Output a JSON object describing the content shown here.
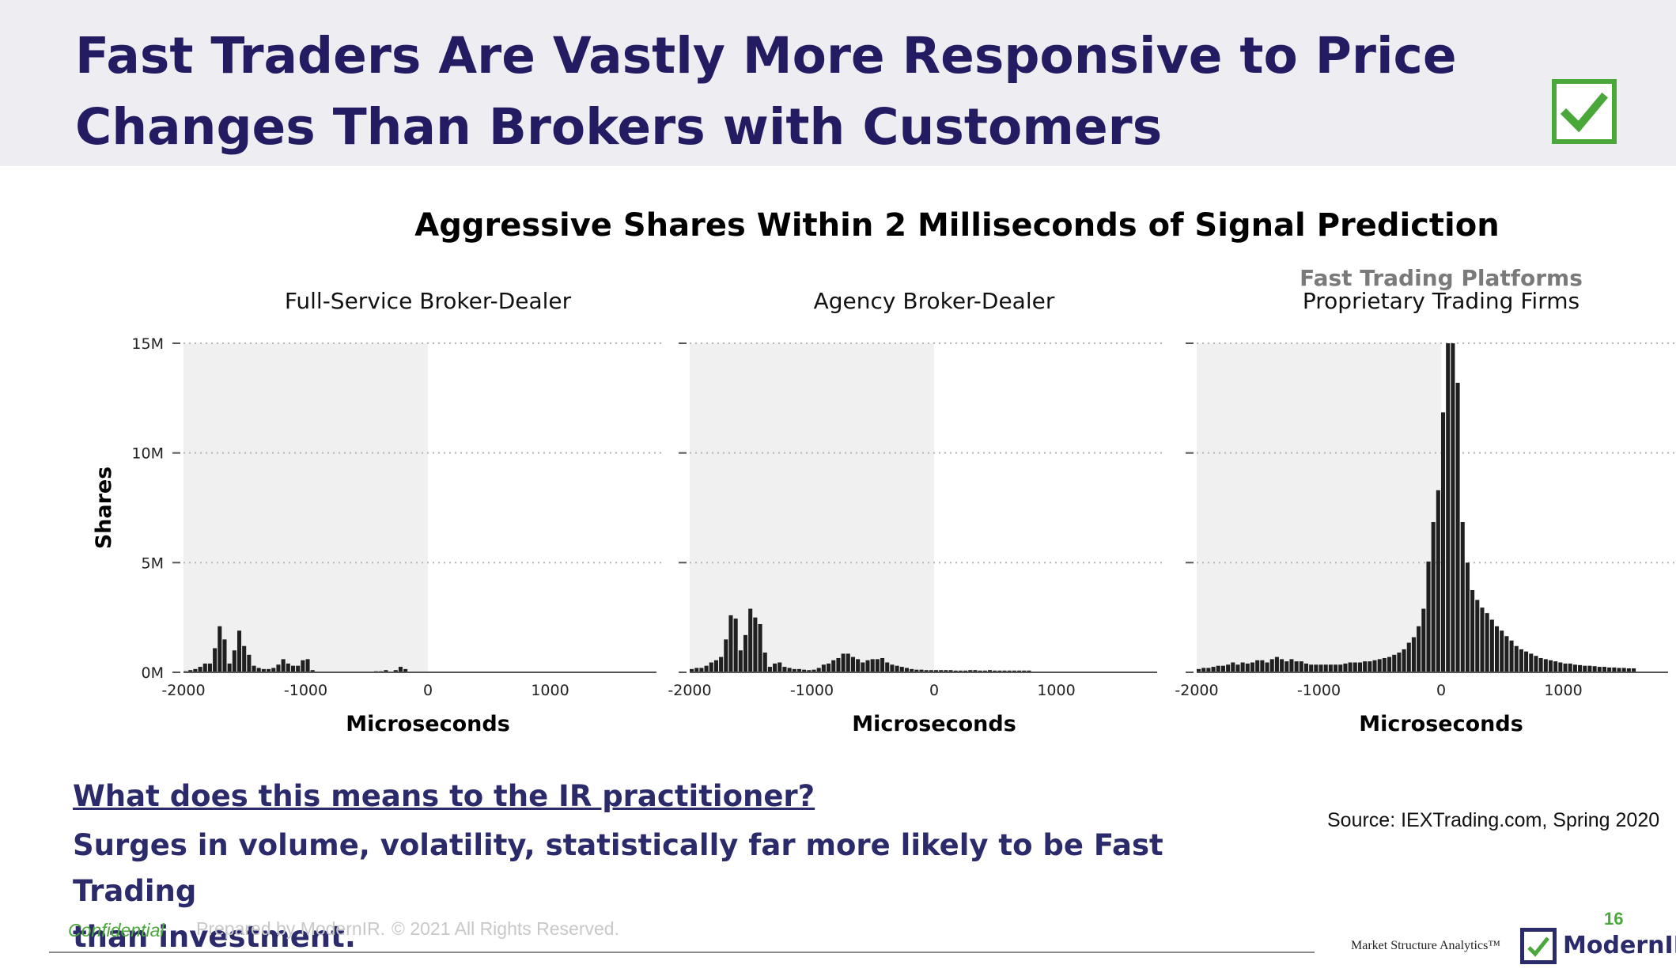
{
  "slide": {
    "title_line1": "Fast Traders Are Vastly More Responsive to Price",
    "title_line2": "Changes Than Brokers with Customers",
    "question": "What does this means to the IR practitioner?",
    "answer_line1": "Surges in volume, volatility, statistically far more likely to be Fast Trading",
    "answer_line2": "than investment.",
    "source": "Source: IEXTrading.com, Spring 2020",
    "accent_color": "#4aa83a",
    "title_color": "#231c63"
  },
  "footer": {
    "confidential": "Confidential",
    "prepared_by": "Prepared by ModernIR.",
    "copyright": "© 2021 All Rights Reserved.",
    "page_number": "16",
    "tagline": "Market Structure Analytics™",
    "logo_text": "ModernIR"
  },
  "chart_data": {
    "type": "bar",
    "title": "Aggressive Shares Within 2 Milliseconds of Signal Prediction",
    "ylabel": "Shares",
    "xlabel": "Microseconds",
    "ylim": [
      0,
      15000000
    ],
    "yticks": [
      0,
      5000000,
      10000000,
      15000000
    ],
    "ytick_labels": [
      "0M",
      "5M",
      "10M",
      "15M"
    ],
    "xlim": [
      -2000,
      2000
    ],
    "xticks": [
      -2000,
      -1000,
      0,
      1000
    ],
    "xtick_labels": [
      "-2000",
      "-1000",
      "0",
      "1000"
    ],
    "shaded_region": [
      -2000,
      0
    ],
    "bin_start": -2000,
    "bin_width": 40,
    "panels": [
      {
        "title": "Full-Service Broker-Dealer",
        "subtitle": "",
        "xlim": [
          -2000,
          2000
        ],
        "values_millions": [
          0.05,
          0.1,
          0.15,
          0.25,
          0.4,
          0.4,
          1.1,
          2.1,
          1.5,
          0.4,
          1.0,
          1.9,
          1.2,
          0.8,
          0.3,
          0.2,
          0.15,
          0.15,
          0.2,
          0.35,
          0.6,
          0.4,
          0.3,
          0.3,
          0.55,
          0.6,
          0.1,
          0,
          0,
          0,
          0,
          0,
          0,
          0,
          0,
          0,
          0,
          0,
          0,
          0.05,
          0.05,
          0.1,
          0,
          0.1,
          0.25,
          0.15,
          0
        ]
      },
      {
        "title": "Agency Broker-Dealer",
        "subtitle": "",
        "xlim": [
          -2000,
          2000
        ],
        "values_millions": [
          0.15,
          0.2,
          0.2,
          0.3,
          0.45,
          0.55,
          0.7,
          1.5,
          2.6,
          2.45,
          1.0,
          1.7,
          2.9,
          2.5,
          2.2,
          0.9,
          0.25,
          0.4,
          0.45,
          0.25,
          0.2,
          0.15,
          0.15,
          0.12,
          0.1,
          0.12,
          0.2,
          0.35,
          0.4,
          0.55,
          0.65,
          0.85,
          0.85,
          0.7,
          0.6,
          0.45,
          0.55,
          0.6,
          0.6,
          0.65,
          0.45,
          0.35,
          0.3,
          0.25,
          0.2,
          0.15,
          0.12,
          0.12,
          0.1,
          0.1,
          0.1,
          0.1,
          0.1,
          0.1,
          0.08,
          0.08,
          0.08,
          0.1,
          0.1,
          0.08,
          0.08,
          0.1,
          0.08,
          0.08,
          0.08,
          0.08,
          0.08,
          0.08,
          0.08,
          0.08
        ]
      },
      {
        "title": "Proprietary Trading Firms",
        "subtitle": "Fast Trading Platforms",
        "xlim": [
          -2000,
          2000
        ],
        "values_millions": [
          0.15,
          0.2,
          0.2,
          0.25,
          0.3,
          0.3,
          0.35,
          0.45,
          0.35,
          0.45,
          0.4,
          0.45,
          0.55,
          0.55,
          0.45,
          0.6,
          0.7,
          0.6,
          0.5,
          0.6,
          0.5,
          0.5,
          0.4,
          0.35,
          0.35,
          0.35,
          0.35,
          0.35,
          0.35,
          0.35,
          0.4,
          0.45,
          0.45,
          0.45,
          0.5,
          0.5,
          0.55,
          0.6,
          0.65,
          0.7,
          0.8,
          0.9,
          1.05,
          1.35,
          1.6,
          2.1,
          2.9,
          5.05,
          6.85,
          8.3,
          11.85,
          15.0,
          15.0,
          13.2,
          6.85,
          5.0,
          3.75,
          3.3,
          2.95,
          2.7,
          2.4,
          2.1,
          1.9,
          1.65,
          1.45,
          1.2,
          1.05,
          0.95,
          0.85,
          0.75,
          0.65,
          0.6,
          0.55,
          0.5,
          0.45,
          0.4,
          0.4,
          0.35,
          0.33,
          0.3,
          0.3,
          0.28,
          0.25,
          0.25,
          0.22,
          0.22,
          0.2,
          0.2,
          0.18,
          0.18
        ]
      }
    ]
  }
}
